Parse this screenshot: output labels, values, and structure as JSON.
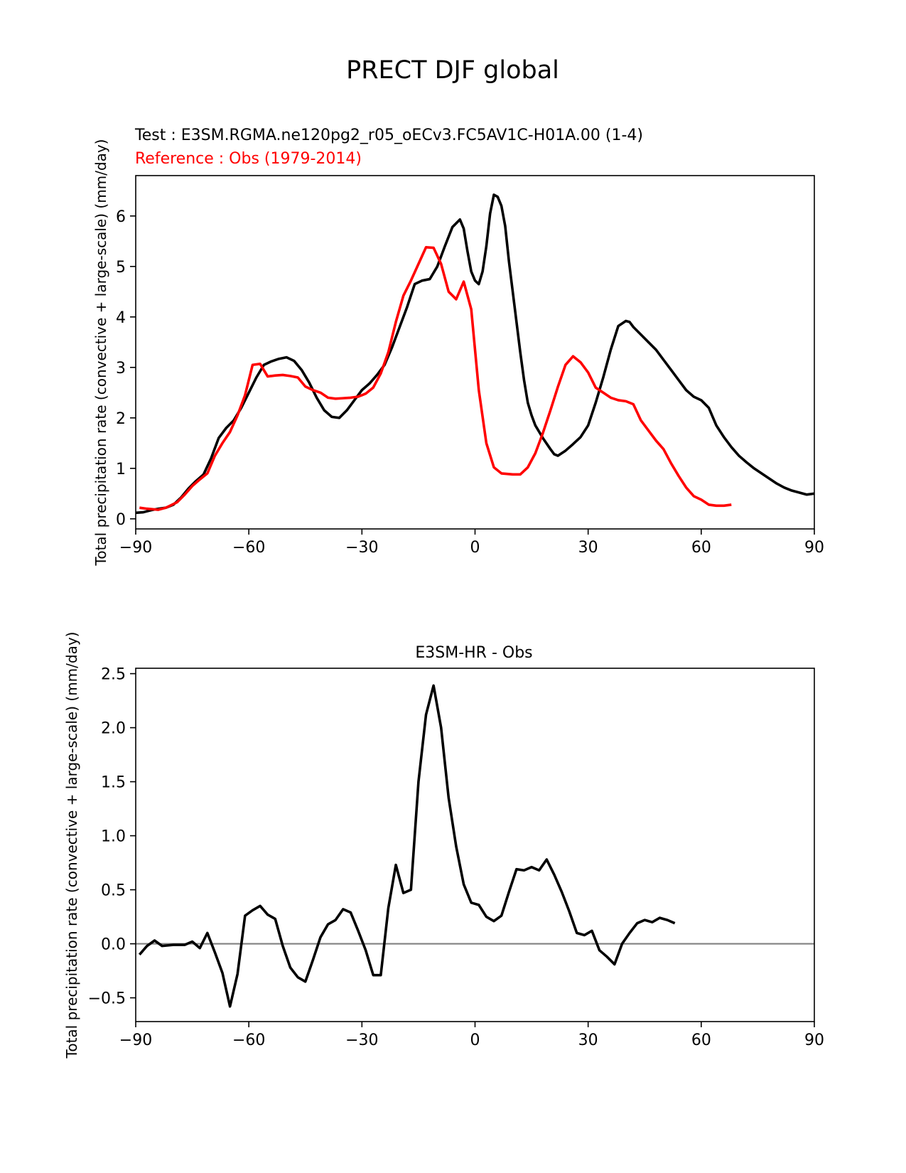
{
  "figure_title": "PRECT DJF global",
  "chart_data": [
    {
      "type": "line",
      "test_label": "Test : E3SM.RGMA.ne120pg2_r05_oECv3.FC5AV1C-H01A.00 (1-4)",
      "reference_label": "Reference : Obs (1979-2014)",
      "ylabel": "Total precipitation rate (convective + large-scale) (mm/day)",
      "xlim": [
        -90,
        90
      ],
      "ylim": [
        -0.2,
        6.8
      ],
      "xticks": [
        -90,
        -60,
        -30,
        0,
        30,
        60,
        90
      ],
      "xtick_labels": [
        "−90",
        "−60",
        "−30",
        "0",
        "30",
        "60",
        "90"
      ],
      "yticks": [
        0,
        1,
        2,
        3,
        4,
        5,
        6
      ],
      "ytick_labels": [
        "0",
        "1",
        "2",
        "3",
        "4",
        "5",
        "6"
      ],
      "series": [
        {
          "color": "#000000",
          "points": [
            [
              -90,
              0.12
            ],
            [
              -88,
              0.13
            ],
            [
              -86,
              0.17
            ],
            [
              -84,
              0.2
            ],
            [
              -82,
              0.22
            ],
            [
              -80,
              0.28
            ],
            [
              -78,
              0.42
            ],
            [
              -76,
              0.6
            ],
            [
              -74,
              0.75
            ],
            [
              -72,
              0.88
            ],
            [
              -70,
              1.2
            ],
            [
              -68,
              1.6
            ],
            [
              -66,
              1.8
            ],
            [
              -64,
              1.95
            ],
            [
              -62,
              2.2
            ],
            [
              -60,
              2.5
            ],
            [
              -58,
              2.8
            ],
            [
              -56,
              3.05
            ],
            [
              -54,
              3.12
            ],
            [
              -52,
              3.17
            ],
            [
              -50,
              3.2
            ],
            [
              -48,
              3.13
            ],
            [
              -46,
              2.95
            ],
            [
              -44,
              2.7
            ],
            [
              -42,
              2.4
            ],
            [
              -40,
              2.15
            ],
            [
              -38,
              2.02
            ],
            [
              -36,
              2.0
            ],
            [
              -34,
              2.15
            ],
            [
              -32,
              2.35
            ],
            [
              -30,
              2.55
            ],
            [
              -28,
              2.68
            ],
            [
              -26,
              2.85
            ],
            [
              -24,
              3.05
            ],
            [
              -22,
              3.4
            ],
            [
              -20,
              3.8
            ],
            [
              -18,
              4.2
            ],
            [
              -16,
              4.65
            ],
            [
              -14,
              4.72
            ],
            [
              -12,
              4.75
            ],
            [
              -10,
              5.0
            ],
            [
              -8,
              5.4
            ],
            [
              -6,
              5.78
            ],
            [
              -4,
              5.93
            ],
            [
              -3,
              5.75
            ],
            [
              -2,
              5.3
            ],
            [
              -1,
              4.9
            ],
            [
              0,
              4.72
            ],
            [
              1,
              4.65
            ],
            [
              2,
              4.9
            ],
            [
              3,
              5.4
            ],
            [
              4,
              6.05
            ],
            [
              5,
              6.42
            ],
            [
              6,
              6.38
            ],
            [
              7,
              6.2
            ],
            [
              8,
              5.8
            ],
            [
              9,
              5.1
            ],
            [
              10,
              4.5
            ],
            [
              11,
              3.9
            ],
            [
              12,
              3.3
            ],
            [
              13,
              2.75
            ],
            [
              14,
              2.3
            ],
            [
              15,
              2.05
            ],
            [
              16,
              1.85
            ],
            [
              18,
              1.6
            ],
            [
              20,
              1.38
            ],
            [
              21,
              1.28
            ],
            [
              22,
              1.25
            ],
            [
              24,
              1.35
            ],
            [
              26,
              1.48
            ],
            [
              28,
              1.62
            ],
            [
              30,
              1.85
            ],
            [
              32,
              2.3
            ],
            [
              34,
              2.8
            ],
            [
              36,
              3.35
            ],
            [
              38,
              3.82
            ],
            [
              40,
              3.92
            ],
            [
              41,
              3.9
            ],
            [
              42,
              3.8
            ],
            [
              44,
              3.65
            ],
            [
              46,
              3.5
            ],
            [
              48,
              3.35
            ],
            [
              50,
              3.15
            ],
            [
              52,
              2.95
            ],
            [
              54,
              2.75
            ],
            [
              56,
              2.55
            ],
            [
              58,
              2.42
            ],
            [
              60,
              2.35
            ],
            [
              62,
              2.2
            ],
            [
              64,
              1.85
            ],
            [
              66,
              1.62
            ],
            [
              68,
              1.42
            ],
            [
              70,
              1.25
            ],
            [
              72,
              1.12
            ],
            [
              74,
              1.0
            ],
            [
              76,
              0.9
            ],
            [
              78,
              0.8
            ],
            [
              80,
              0.7
            ],
            [
              82,
              0.62
            ],
            [
              84,
              0.56
            ],
            [
              86,
              0.52
            ],
            [
              88,
              0.48
            ],
            [
              90,
              0.5
            ]
          ]
        },
        {
          "color": "#ff0000",
          "points": [
            [
              -89,
              0.22
            ],
            [
              -87,
              0.2
            ],
            [
              -84,
              0.18
            ],
            [
              -82,
              0.22
            ],
            [
              -79,
              0.33
            ],
            [
              -77,
              0.48
            ],
            [
              -75,
              0.65
            ],
            [
              -73,
              0.78
            ],
            [
              -71,
              0.9
            ],
            [
              -69,
              1.25
            ],
            [
              -67,
              1.5
            ],
            [
              -65,
              1.72
            ],
            [
              -63,
              2.05
            ],
            [
              -61,
              2.45
            ],
            [
              -59,
              3.05
            ],
            [
              -57,
              3.07
            ],
            [
              -55,
              2.82
            ],
            [
              -53,
              2.84
            ],
            [
              -51,
              2.85
            ],
            [
              -49,
              2.83
            ],
            [
              -47,
              2.8
            ],
            [
              -45,
              2.62
            ],
            [
              -43,
              2.55
            ],
            [
              -41,
              2.5
            ],
            [
              -39,
              2.4
            ],
            [
              -37,
              2.38
            ],
            [
              -35,
              2.39
            ],
            [
              -33,
              2.4
            ],
            [
              -31,
              2.42
            ],
            [
              -29,
              2.48
            ],
            [
              -27,
              2.6
            ],
            [
              -25,
              2.88
            ],
            [
              -23,
              3.3
            ],
            [
              -21,
              3.9
            ],
            [
              -19,
              4.42
            ],
            [
              -17,
              4.72
            ],
            [
              -15,
              5.05
            ],
            [
              -13,
              5.38
            ],
            [
              -11,
              5.37
            ],
            [
              -9,
              5.05
            ],
            [
              -7,
              4.5
            ],
            [
              -5,
              4.35
            ],
            [
              -3,
              4.7
            ],
            [
              -1,
              4.15
            ],
            [
              1,
              2.55
            ],
            [
              3,
              1.5
            ],
            [
              5,
              1.02
            ],
            [
              7,
              0.9
            ],
            [
              10,
              0.88
            ],
            [
              12,
              0.88
            ],
            [
              14,
              1.02
            ],
            [
              16,
              1.3
            ],
            [
              18,
              1.7
            ],
            [
              20,
              2.15
            ],
            [
              22,
              2.62
            ],
            [
              24,
              3.05
            ],
            [
              26,
              3.22
            ],
            [
              28,
              3.1
            ],
            [
              30,
              2.9
            ],
            [
              32,
              2.6
            ],
            [
              34,
              2.5
            ],
            [
              36,
              2.4
            ],
            [
              38,
              2.35
            ],
            [
              40,
              2.33
            ],
            [
              42,
              2.27
            ],
            [
              44,
              1.95
            ],
            [
              46,
              1.75
            ],
            [
              48,
              1.55
            ],
            [
              50,
              1.38
            ],
            [
              52,
              1.1
            ],
            [
              54,
              0.85
            ],
            [
              56,
              0.62
            ],
            [
              58,
              0.45
            ],
            [
              60,
              0.38
            ],
            [
              62,
              0.28
            ],
            [
              64,
              0.26
            ],
            [
              66,
              0.26
            ],
            [
              68,
              0.28
            ]
          ]
        }
      ]
    },
    {
      "type": "line",
      "title": "E3SM-HR - Obs",
      "ylabel": "Total precipitation rate (convective + large-scale) (mm/day)",
      "xlim": [
        -90,
        90
      ],
      "ylim": [
        -0.72,
        2.55
      ],
      "xticks": [
        -90,
        -60,
        -30,
        0,
        30,
        60,
        90
      ],
      "xtick_labels": [
        "−90",
        "−60",
        "−30",
        "0",
        "30",
        "60",
        "90"
      ],
      "yticks": [
        -0.5,
        0.0,
        0.5,
        1.0,
        1.5,
        2.0,
        2.5
      ],
      "ytick_labels": [
        "−0.5",
        "0.0",
        "0.5",
        "1.0",
        "1.5",
        "2.0",
        "2.5"
      ],
      "zero_line": true,
      "series": [
        {
          "color": "#000000",
          "points": [
            [
              -89,
              -0.1
            ],
            [
              -87,
              -0.02
            ],
            [
              -85,
              0.03
            ],
            [
              -83,
              -0.02
            ],
            [
              -80,
              -0.01
            ],
            [
              -77,
              -0.01
            ],
            [
              -75,
              0.02
            ],
            [
              -73,
              -0.04
            ],
            [
              -71,
              0.1
            ],
            [
              -69,
              -0.08
            ],
            [
              -67,
              -0.27
            ],
            [
              -65,
              -0.58
            ],
            [
              -63,
              -0.28
            ],
            [
              -61,
              0.26
            ],
            [
              -59,
              0.31
            ],
            [
              -57,
              0.35
            ],
            [
              -55,
              0.27
            ],
            [
              -53,
              0.23
            ],
            [
              -51,
              -0.02
            ],
            [
              -49,
              -0.22
            ],
            [
              -47,
              -0.31
            ],
            [
              -45,
              -0.35
            ],
            [
              -43,
              -0.15
            ],
            [
              -41,
              0.06
            ],
            [
              -39,
              0.18
            ],
            [
              -37,
              0.22
            ],
            [
              -35,
              0.32
            ],
            [
              -33,
              0.29
            ],
            [
              -31,
              0.12
            ],
            [
              -29,
              -0.06
            ],
            [
              -27,
              -0.29
            ],
            [
              -25,
              -0.29
            ],
            [
              -23,
              0.33
            ],
            [
              -21,
              0.73
            ],
            [
              -19,
              0.47
            ],
            [
              -17,
              0.5
            ],
            [
              -15,
              1.5
            ],
            [
              -13,
              2.12
            ],
            [
              -11,
              2.39
            ],
            [
              -9,
              2.0
            ],
            [
              -7,
              1.35
            ],
            [
              -5,
              0.9
            ],
            [
              -3,
              0.55
            ],
            [
              -1,
              0.38
            ],
            [
              1,
              0.36
            ],
            [
              3,
              0.25
            ],
            [
              5,
              0.21
            ],
            [
              7,
              0.26
            ],
            [
              9,
              0.48
            ],
            [
              11,
              0.69
            ],
            [
              13,
              0.68
            ],
            [
              15,
              0.71
            ],
            [
              17,
              0.68
            ],
            [
              19,
              0.78
            ],
            [
              21,
              0.64
            ],
            [
              23,
              0.48
            ],
            [
              25,
              0.3
            ],
            [
              27,
              0.1
            ],
            [
              29,
              0.08
            ],
            [
              31,
              0.12
            ],
            [
              33,
              -0.06
            ],
            [
              35,
              -0.12
            ],
            [
              37,
              -0.19
            ],
            [
              39,
              0.0
            ],
            [
              41,
              0.1
            ],
            [
              43,
              0.19
            ],
            [
              45,
              0.22
            ],
            [
              47,
              0.2
            ],
            [
              49,
              0.24
            ],
            [
              51,
              0.22
            ],
            [
              53,
              0.19
            ]
          ]
        }
      ]
    }
  ]
}
